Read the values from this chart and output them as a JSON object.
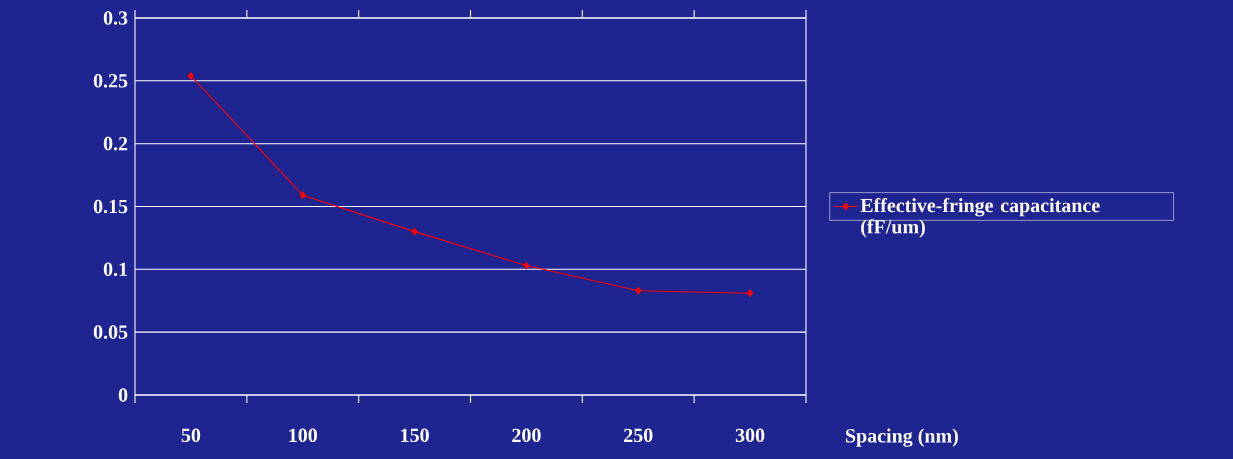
{
  "chart_data": {
    "type": "line",
    "xlabel": "Spacing (nm)",
    "categories": [
      "50",
      "100",
      "150",
      "200",
      "250",
      "300"
    ],
    "series": [
      {
        "name": "Effective-fringe capacitance (fF/um)",
        "color": "#ff0000",
        "values": [
          0.254,
          0.159,
          0.13,
          0.103,
          0.083,
          0.081
        ]
      }
    ],
    "ylim": [
      0,
      0.3
    ],
    "yticks": [
      0,
      0.05,
      0.1,
      0.15,
      0.2,
      0.25,
      0.3
    ],
    "grid": "y",
    "legend": "right",
    "marker": "diamond",
    "line_style": "solid"
  }
}
